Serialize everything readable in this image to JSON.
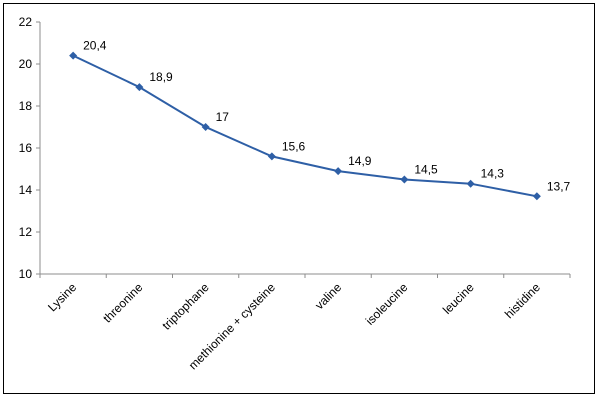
{
  "chart_data": {
    "type": "line",
    "categories": [
      "Lysine",
      "threonine",
      "triptophane",
      "methionine + cysteine",
      "valine",
      "isoleucine",
      "leucine",
      "histidine"
    ],
    "values": [
      20.4,
      18.9,
      17,
      15.6,
      14.9,
      14.5,
      14.3,
      13.7
    ],
    "data_labels": [
      "20,4",
      "18,9",
      "17",
      "15,6",
      "14,9",
      "14,5",
      "14,3",
      "13,7"
    ],
    "y_ticks": [
      "10",
      "12",
      "14",
      "16",
      "18",
      "20",
      "22"
    ],
    "ylim": [
      10,
      22
    ],
    "grid": false,
    "legend": "none",
    "line_color": "#2E5FA6",
    "axis_color": "#8C8C8C"
  }
}
